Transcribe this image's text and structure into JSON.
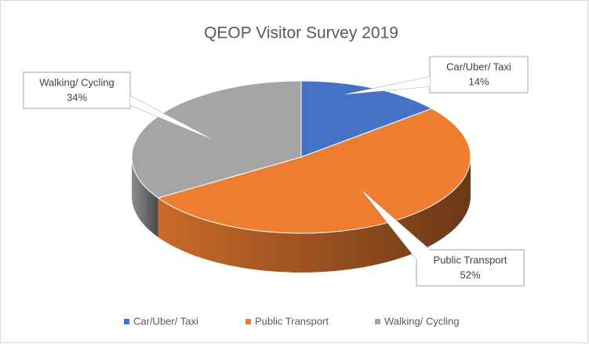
{
  "chart_data": {
    "type": "pie",
    "title": "QEOP Visitor Survey 2019",
    "categories": [
      "Car/Uber/ Taxi",
      "Public Transport",
      "Walking/ Cycling"
    ],
    "values": [
      14,
      52,
      34
    ],
    "value_labels": [
      "14%",
      "52%",
      "34%"
    ],
    "colors": [
      "#4472c4",
      "#ed7d31",
      "#a5a5a5"
    ],
    "legend": "bottom"
  }
}
